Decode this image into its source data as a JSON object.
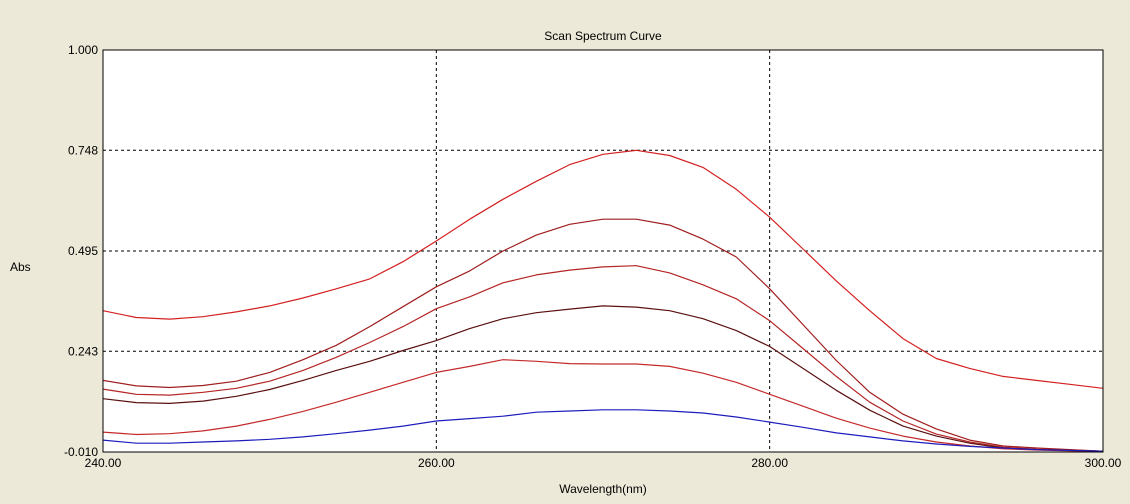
{
  "chart_data": {
    "type": "line",
    "title": "Scan Spectrum Curve",
    "xlabel": "Wavelength(nm)",
    "ylabel": "Abs",
    "xlim": [
      240,
      300
    ],
    "ylim": [
      -0.01,
      1.0
    ],
    "xticks": [
      "240.00",
      "260.00",
      "280.00",
      "300.00"
    ],
    "yticks": [
      "-0.010",
      "0.243",
      "0.495",
      "0.748",
      "1.000"
    ],
    "grid": "dashed",
    "colors": {
      "background": "#ece9d8",
      "plot_area": "#ffffff",
      "grid": "#000000"
    },
    "series": [
      {
        "color": "#d42020",
        "x": [
          240,
          242,
          244,
          246,
          248,
          250,
          252,
          254,
          256,
          258,
          260,
          262,
          264,
          266,
          268,
          270,
          272,
          274,
          276,
          278,
          280,
          282,
          284,
          286,
          288,
          290,
          292,
          294,
          296,
          298,
          300
        ],
        "y": [
          0.345,
          0.328,
          0.324,
          0.33,
          0.342,
          0.357,
          0.377,
          0.4,
          0.425,
          0.468,
          0.52,
          0.575,
          0.625,
          0.67,
          0.712,
          0.738,
          0.748,
          0.735,
          0.705,
          0.65,
          0.58,
          0.5,
          0.42,
          0.345,
          0.275,
          0.225,
          0.2,
          0.18,
          0.17,
          0.16,
          0.15
        ]
      },
      {
        "color": "#a01e1e",
        "x": [
          240,
          242,
          244,
          246,
          248,
          250,
          252,
          254,
          256,
          258,
          260,
          262,
          264,
          266,
          268,
          270,
          272,
          274,
          276,
          278,
          280,
          282,
          284,
          286,
          288,
          290,
          292,
          294,
          296,
          298,
          300
        ],
        "y": [
          0.17,
          0.156,
          0.152,
          0.157,
          0.168,
          0.19,
          0.222,
          0.258,
          0.305,
          0.355,
          0.405,
          0.445,
          0.495,
          0.535,
          0.562,
          0.575,
          0.575,
          0.56,
          0.525,
          0.48,
          0.4,
          0.31,
          0.22,
          0.14,
          0.085,
          0.048,
          0.02,
          0.005,
          0.0,
          -0.004,
          -0.008
        ]
      },
      {
        "color": "#b52525",
        "x": [
          240,
          242,
          244,
          246,
          248,
          250,
          252,
          254,
          256,
          258,
          260,
          262,
          264,
          266,
          268,
          270,
          272,
          274,
          276,
          278,
          280,
          282,
          284,
          286,
          288,
          290,
          292,
          294,
          296,
          298,
          300
        ],
        "y": [
          0.148,
          0.135,
          0.133,
          0.14,
          0.15,
          0.168,
          0.195,
          0.228,
          0.265,
          0.305,
          0.35,
          0.38,
          0.415,
          0.435,
          0.447,
          0.455,
          0.458,
          0.44,
          0.41,
          0.375,
          0.32,
          0.25,
          0.18,
          0.115,
          0.068,
          0.035,
          0.015,
          0.002,
          -0.003,
          -0.005,
          -0.008
        ]
      },
      {
        "color": "#5a1010",
        "x": [
          240,
          242,
          244,
          246,
          248,
          250,
          252,
          254,
          256,
          258,
          260,
          262,
          264,
          266,
          268,
          270,
          272,
          274,
          276,
          278,
          280,
          282,
          284,
          286,
          288,
          290,
          292,
          294,
          296,
          298,
          300
        ],
        "y": [
          0.124,
          0.114,
          0.112,
          0.118,
          0.13,
          0.147,
          0.17,
          0.195,
          0.218,
          0.245,
          0.27,
          0.3,
          0.325,
          0.34,
          0.349,
          0.357,
          0.354,
          0.345,
          0.325,
          0.295,
          0.255,
          0.2,
          0.145,
          0.095,
          0.055,
          0.03,
          0.012,
          0.0,
          -0.004,
          -0.006,
          -0.008
        ]
      },
      {
        "color": "#c42a2a",
        "x": [
          240,
          242,
          244,
          246,
          248,
          250,
          252,
          254,
          256,
          258,
          260,
          262,
          264,
          266,
          268,
          270,
          272,
          274,
          276,
          278,
          280,
          282,
          284,
          286,
          288,
          290,
          292,
          294,
          296,
          298,
          300
        ],
        "y": [
          0.04,
          0.034,
          0.036,
          0.043,
          0.055,
          0.072,
          0.092,
          0.115,
          0.14,
          0.165,
          0.19,
          0.205,
          0.222,
          0.218,
          0.212,
          0.211,
          0.211,
          0.205,
          0.188,
          0.165,
          0.135,
          0.105,
          0.075,
          0.05,
          0.03,
          0.015,
          0.005,
          -0.002,
          -0.005,
          -0.007,
          -0.009
        ]
      },
      {
        "color": "#1d1dbd",
        "x": [
          240,
          242,
          244,
          246,
          248,
          250,
          252,
          254,
          256,
          258,
          260,
          262,
          264,
          266,
          268,
          270,
          272,
          274,
          276,
          278,
          280,
          282,
          284,
          286,
          288,
          290,
          292,
          294,
          296,
          298,
          300
        ],
        "y": [
          0.02,
          0.012,
          0.012,
          0.015,
          0.018,
          0.022,
          0.028,
          0.036,
          0.045,
          0.055,
          0.068,
          0.074,
          0.08,
          0.09,
          0.093,
          0.096,
          0.096,
          0.093,
          0.088,
          0.078,
          0.065,
          0.052,
          0.038,
          0.028,
          0.018,
          0.01,
          0.004,
          0.0,
          -0.004,
          -0.006,
          -0.008
        ]
      }
    ]
  }
}
